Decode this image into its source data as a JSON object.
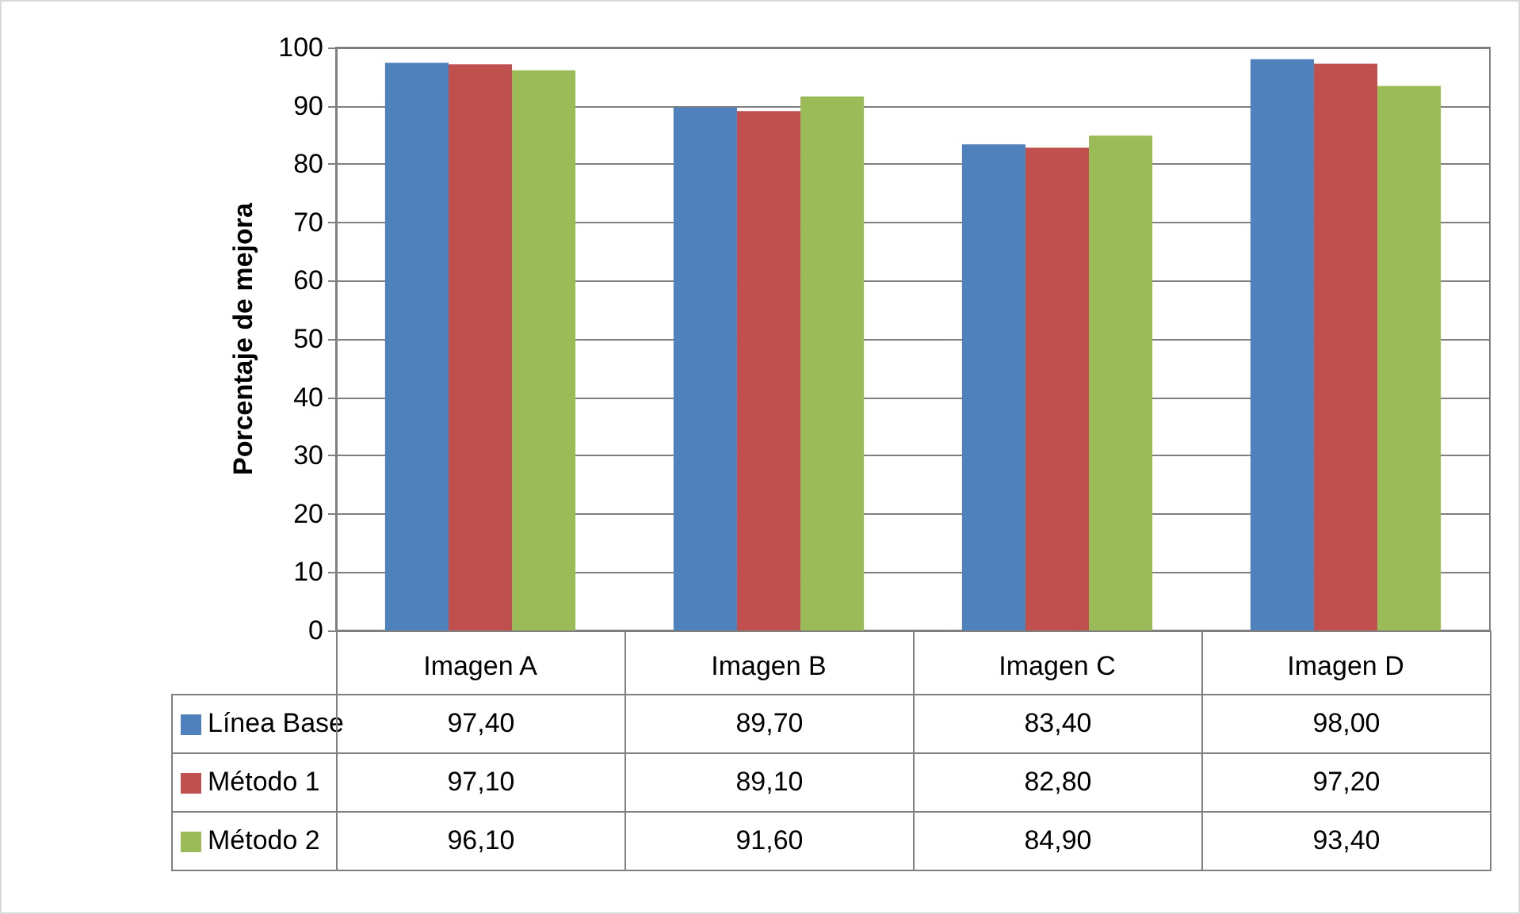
{
  "chart_data": {
    "type": "bar",
    "ylabel": "Porcentaje de mejora",
    "categories": [
      "Imagen A",
      "Imagen B",
      "Imagen C",
      "Imagen D"
    ],
    "series": [
      {
        "name": "Línea Base",
        "color": "#4f81bd",
        "values": [
          97.4,
          89.7,
          83.4,
          98.0
        ],
        "value_labels": [
          "97,40",
          "89,70",
          "83,40",
          "98,00"
        ]
      },
      {
        "name": "Método 1",
        "color": "#c0504d",
        "values": [
          97.1,
          89.1,
          82.8,
          97.2
        ],
        "value_labels": [
          "97,10",
          "89,10",
          "82,80",
          "97,20"
        ]
      },
      {
        "name": "Método 2",
        "color": "#9bbb59",
        "values": [
          96.1,
          91.6,
          84.9,
          93.4
        ],
        "value_labels": [
          "96,10",
          "91,60",
          "84,90",
          "93,40"
        ]
      }
    ],
    "ylim": [
      0,
      100
    ],
    "yticks": [
      0,
      10,
      20,
      30,
      40,
      50,
      60,
      70,
      80,
      90,
      100
    ],
    "grid": "y",
    "legend": "bottom"
  }
}
